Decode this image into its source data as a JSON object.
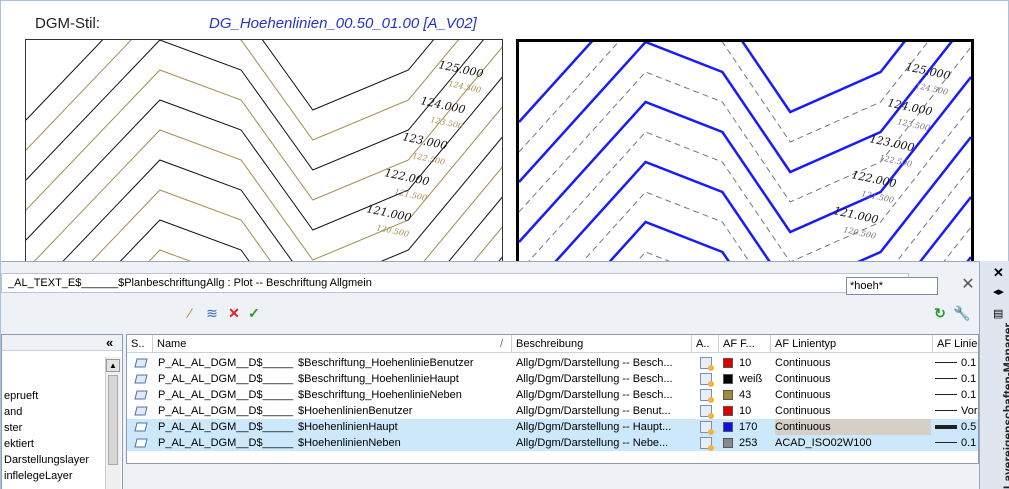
{
  "preview": {
    "label": "DGM-Stil:",
    "style_name": "DG_Hoehenlinien_00.50_01.00 [A_V02]",
    "major_labels": [
      "125.000",
      "124.000",
      "123.000",
      "122.000",
      "121.000"
    ],
    "minor_labels": [
      "124.500",
      "123.500",
      "122.500",
      "121.500",
      "120.500"
    ]
  },
  "panel": {
    "current_layer": "_AL_TEXT_E$______$PlanbeschriftungAllg : Plot -- Beschriftung Allgmein",
    "search_value": "*hoeh*",
    "side_title": "Layereigenschaften-Manager",
    "tree_collapse": "«",
    "tree_items": [
      "eprueft",
      "and",
      "ster",
      "ektiert",
      "Darstellungslayer",
      "inflelegeLayer"
    ],
    "columns": {
      "status": "S..",
      "name": "Name",
      "description": "Beschreibung",
      "a": "A..",
      "color": "AF F...",
      "linetype": "AF Linientyp",
      "lineweight": "AF Linier"
    },
    "rows": [
      {
        "name_prefix": "P_AL_AL_DGM__D$_____",
        "name_suffix": "$Beschriftung_HoehenlinieBenutzer",
        "description": "Allg/Dgm/Darstellung -- Besch...",
        "color_value": "10",
        "swatch": "#e00000",
        "linetype": "Continuous",
        "lineweight": "0.1",
        "selected": false
      },
      {
        "name_prefix": "P_AL_AL_DGM__D$_____",
        "name_suffix": "$Beschriftung_HoehenlinieHaupt",
        "description": "Allg/Dgm/Darstellung -- Besch...",
        "color_value": "weiß",
        "swatch": "#000000",
        "linetype": "Continuous",
        "lineweight": "0.1",
        "selected": false
      },
      {
        "name_prefix": "P_AL_AL_DGM__D$_____",
        "name_suffix": "$Beschriftung_HoehenlinieNeben",
        "description": "Allg/Dgm/Darstellung -- Besch...",
        "color_value": "43",
        "swatch": "#a08a3c",
        "linetype": "Continuous",
        "lineweight": "0.1",
        "selected": false
      },
      {
        "name_prefix": "P_AL_AL_DGM__D$_____",
        "name_suffix": "$HoehenlinienBenutzer",
        "description": "Allg/Dgm/Darstellung -- Benut...",
        "color_value": "10",
        "swatch": "#e00000",
        "linetype": "Continuous",
        "lineweight": "Vor",
        "selected": false
      },
      {
        "name_prefix": "P_AL_AL_DGM__D$_____",
        "name_suffix": "$HoehenlinienHaupt",
        "description": "Allg/Dgm/Darstellung -- Haupt...",
        "color_value": "170",
        "swatch": "#1010e0",
        "linetype": "Continuous",
        "lineweight": "0.5",
        "selected": true
      },
      {
        "name_prefix": "P_AL_AL_DGM__D$_____",
        "name_suffix": "$HoehenlinienNeben",
        "description": "Allg/Dgm/Darstellung -- Nebe...",
        "color_value": "253",
        "swatch": "#8a8a8a",
        "linetype": "ACAD_ISO02W100",
        "lineweight": "0.1",
        "selected": true
      }
    ]
  }
}
